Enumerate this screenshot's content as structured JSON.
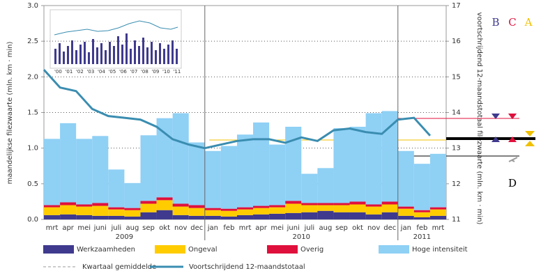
{
  "chart_data": {
    "type": "stacked-bar-line",
    "ylabel": "maandelijkse filezwaarte  (mln. km · min)",
    "y2label": "voortschrijdend 12-maandstotaal filezwaarte  (mln. km · min)",
    "category_groups": [
      {
        "label": "2009",
        "categories": [
          "mrt",
          "apr",
          "mei",
          "juni",
          "juli",
          "aug",
          "sep",
          "okt",
          "nov",
          "dec"
        ]
      },
      {
        "label": "2010",
        "categories": [
          "jan",
          "feb",
          "mrt",
          "apr",
          "mei",
          "juni",
          "juli",
          "aug",
          "sep",
          "okt",
          "nov",
          "dec"
        ]
      },
      {
        "label": "2011",
        "categories": [
          "jan",
          "feb",
          "mrt"
        ]
      }
    ],
    "ylim": [
      0,
      3
    ],
    "yticks": [
      {
        "value": 0,
        "label": "0.0"
      },
      0.5,
      {
        "value": 1,
        "label": "1.0"
      },
      1.5,
      {
        "value": 2,
        "label": "2.0"
      },
      2.5,
      {
        "value": 3,
        "label": "3.0"
      }
    ],
    "y2lim": [
      11,
      17
    ],
    "y2ticks": [
      11,
      12,
      13,
      14,
      15,
      16,
      17
    ],
    "grid": true,
    "series": [
      {
        "name": "Werkzaamheden",
        "color": "#3f3a8e",
        "values": [
          0.06,
          0.07,
          0.06,
          0.05,
          0.05,
          0.04,
          0.1,
          0.13,
          0.06,
          0.05,
          0.05,
          0.04,
          0.06,
          0.07,
          0.08,
          0.09,
          0.1,
          0.12,
          0.1,
          0.1,
          0.07,
          0.1,
          0.05,
          0.03,
          0.05
        ]
      },
      {
        "name": "Ongeval",
        "color": "#ffcc00",
        "values": [
          0.11,
          0.13,
          0.12,
          0.14,
          0.09,
          0.09,
          0.12,
          0.14,
          0.12,
          0.11,
          0.08,
          0.08,
          0.08,
          0.09,
          0.09,
          0.13,
          0.1,
          0.08,
          0.1,
          0.11,
          0.11,
          0.11,
          0.1,
          0.07,
          0.09
        ]
      },
      {
        "name": "Overig",
        "color": "#e0103c",
        "values": [
          0.03,
          0.04,
          0.03,
          0.04,
          0.03,
          0.03,
          0.04,
          0.04,
          0.04,
          0.04,
          0.03,
          0.03,
          0.03,
          0.03,
          0.03,
          0.04,
          0.03,
          0.03,
          0.03,
          0.04,
          0.03,
          0.04,
          0.03,
          0.03,
          0.03
        ]
      },
      {
        "name": "Hoge intensiteit",
        "color": "#8fd0f5",
        "values": [
          0.93,
          1.11,
          0.92,
          0.94,
          0.53,
          0.35,
          0.92,
          1.11,
          1.27,
          0.88,
          0.8,
          0.88,
          1.02,
          1.17,
          0.85,
          1.04,
          0.41,
          0.49,
          1.05,
          1.05,
          1.28,
          1.27,
          0.78,
          0.65,
          0.75
        ]
      },
      {
        "name": "Kwartaal gemiddelde",
        "color": "#999999",
        "dashed": true
      },
      {
        "name": "Voortschrijdend 12-maandstotaal",
        "color": "#3a8db0",
        "axis": "y2",
        "values": [
          15.2,
          14.7,
          14.6,
          14.1,
          13.9,
          13.85,
          13.8,
          13.6,
          13.25,
          13.1,
          13.0,
          13.1,
          13.2,
          13.25,
          13.25,
          13.15,
          13.3,
          13.2,
          13.5,
          13.55,
          13.45,
          13.4,
          13.8,
          13.85,
          13.35
        ]
      }
    ],
    "inset_xticks": [
      "'00",
      "'01",
      "'02",
      "'03",
      "'04",
      "'05",
      "'06",
      "'07",
      "'08",
      "'09",
      "'10",
      "'11"
    ],
    "markers": [
      {
        "label": "B",
        "color": "#3f3a8e"
      },
      {
        "label": "C",
        "color": "#e0103c"
      },
      {
        "label": "A",
        "color": "#f0c000"
      },
      {
        "label": "D",
        "color": "#000000"
      }
    ]
  }
}
